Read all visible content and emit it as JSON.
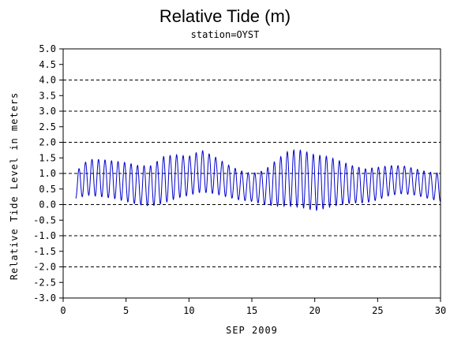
{
  "chart_data": {
    "type": "line",
    "title": "Relative Tide (m)",
    "subtitle": "station=OYST",
    "xlabel": "SEP 2009",
    "ylabel": "Relative Tide Level in meters",
    "xlim": [
      0,
      30
    ],
    "ylim": [
      -3.0,
      5.0
    ],
    "x_ticks": [
      0,
      5,
      10,
      15,
      20,
      25,
      30
    ],
    "y_ticks": [
      5.0,
      4.5,
      4.0,
      3.5,
      3.0,
      2.5,
      2.0,
      1.5,
      1.0,
      0.5,
      0.0,
      -0.5,
      -1.0,
      -1.5,
      -2.0,
      -2.5,
      -3.0
    ],
    "y_tick_labels": [
      "5.0",
      "4.5",
      "4.0",
      "3.5",
      "3.0",
      "2.5",
      "2.0",
      "1.5",
      "1.0",
      "0.5",
      "0.0",
      "-0.5",
      "-1.0",
      "-1.5",
      "-2.0",
      "-2.5",
      "-3.0"
    ],
    "gridlines_y": [
      5.0,
      4.0,
      3.0,
      2.0,
      1.0,
      0.0,
      -1.0,
      -2.0,
      -3.0
    ],
    "grid_style": "dashed",
    "series": [
      {
        "color": "#0000cc",
        "x_start": 1.0,
        "x_end": 30.0,
        "tide_cycle_days": 0.5175,
        "daily_highs": [
          1.05,
          1.45,
          1.45,
          1.4,
          1.35,
          1.25,
          1.25,
          1.55,
          1.6,
          1.55,
          1.75,
          1.55,
          1.3,
          1.1,
          1.0,
          1.1,
          1.45,
          1.75,
          1.75,
          1.6,
          1.55,
          1.4,
          1.25,
          1.15,
          1.2,
          1.25,
          1.25,
          1.15,
          1.05,
          1.0
        ],
        "daily_lows": [
          0.2,
          0.3,
          0.25,
          0.2,
          0.1,
          0.0,
          -0.05,
          0.05,
          0.2,
          0.3,
          0.4,
          0.35,
          0.25,
          0.15,
          0.1,
          0.0,
          -0.05,
          -0.05,
          -0.1,
          -0.2,
          -0.1,
          0.0,
          0.05,
          0.05,
          0.15,
          0.3,
          0.35,
          0.3,
          0.2,
          0.1
        ]
      }
    ]
  }
}
